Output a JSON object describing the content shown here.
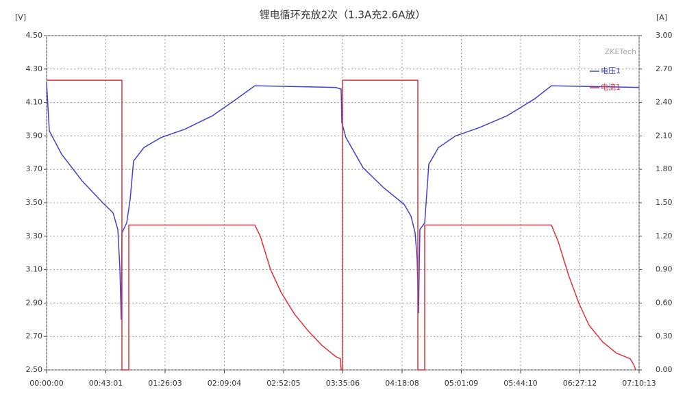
{
  "chart_data": {
    "type": "line",
    "title": "锂电循环充放2次（1.3A充2.6A放）",
    "y_unit": "[V]",
    "y2_unit": "[A]",
    "annotation": "ZKETech",
    "grid": true,
    "legend": "top-right",
    "xlim": [
      0,
      25813
    ],
    "xticks": [
      {
        "value": 0,
        "label": "00:00:00"
      },
      {
        "value": 2581,
        "label": "00:43:01"
      },
      {
        "value": 5163,
        "label": "01:26:03"
      },
      {
        "value": 7744,
        "label": "02:09:04"
      },
      {
        "value": 10325,
        "label": "02:52:05"
      },
      {
        "value": 12906,
        "label": "03:35:06"
      },
      {
        "value": 15488,
        "label": "04:18:08"
      },
      {
        "value": 18069,
        "label": "05:01:09"
      },
      {
        "value": 20650,
        "label": "05:44:10"
      },
      {
        "value": 23232,
        "label": "06:27:12"
      },
      {
        "value": 25813,
        "label": "07:10:13"
      }
    ],
    "ylim": [
      2.5,
      4.5
    ],
    "yticks": [
      {
        "value": 2.5,
        "label": "2.50"
      },
      {
        "value": 2.7,
        "label": "2.70"
      },
      {
        "value": 2.9,
        "label": "2.90"
      },
      {
        "value": 3.1,
        "label": "3.10"
      },
      {
        "value": 3.3,
        "label": "3.30"
      },
      {
        "value": 3.5,
        "label": "3.50"
      },
      {
        "value": 3.7,
        "label": "3.70"
      },
      {
        "value": 3.9,
        "label": "3.90"
      },
      {
        "value": 4.1,
        "label": "4.10"
      },
      {
        "value": 4.3,
        "label": "4.30"
      },
      {
        "value": 4.5,
        "label": "4.50"
      }
    ],
    "y2lim": [
      0,
      3
    ],
    "y2ticks": [
      {
        "value": 0,
        "label": "0.00"
      },
      {
        "value": 0.3,
        "label": "0.30"
      },
      {
        "value": 0.6,
        "label": "0.60"
      },
      {
        "value": 0.9,
        "label": "0.90"
      },
      {
        "value": 1.2,
        "label": "1.20"
      },
      {
        "value": 1.5,
        "label": "1.50"
      },
      {
        "value": 1.8,
        "label": "1.80"
      },
      {
        "value": 2.1,
        "label": "2.10"
      },
      {
        "value": 2.4,
        "label": "2.40"
      },
      {
        "value": 2.7,
        "label": "2.70"
      },
      {
        "value": 3,
        "label": "3.00"
      }
    ],
    "series": [
      {
        "name": "电压1",
        "color": "#4040c8",
        "x": [
          0,
          119,
          657,
          1552,
          2447,
          2895,
          3104,
          3193,
          3253,
          3283,
          3491,
          3641,
          3790,
          4238,
          4984,
          6028,
          7222,
          8266,
          9071,
          12593,
          12832,
          12862,
          13041,
          13787,
          14682,
          15577,
          15876,
          16055,
          16145,
          16204,
          16264,
          16473,
          16652,
          17070,
          17816,
          18860,
          20054,
          21248,
          21994,
          25813
        ],
        "values": [
          4.22,
          3.93,
          3.79,
          3.63,
          3.5,
          3.44,
          3.34,
          3.11,
          2.8,
          3.32,
          3.38,
          3.52,
          3.75,
          3.83,
          3.89,
          3.94,
          4.02,
          4.12,
          4.2,
          4.19,
          4.18,
          3.98,
          3.89,
          3.71,
          3.59,
          3.49,
          3.42,
          3.32,
          3.16,
          2.84,
          3.34,
          3.38,
          3.73,
          3.83,
          3.9,
          3.95,
          4.02,
          4.12,
          4.2,
          4.19
        ]
      },
      {
        "name": "电流1",
        "color": "#e0303a",
        "axis": "y2",
        "x": [
          0,
          3283,
          3283,
          3581,
          3581,
          9071,
          9311,
          9758,
          10206,
          10803,
          11400,
          11996,
          12593,
          12802,
          12832,
          12892,
          12892,
          16174,
          16174,
          16473,
          16473,
          21994,
          22293,
          22740,
          23188,
          23635,
          24232,
          24829,
          25426,
          25575,
          25664
        ],
        "values": [
          2.6,
          2.6,
          0,
          0,
          1.3,
          1.3,
          1.2,
          0.9,
          0.7,
          0.5,
          0.35,
          0.22,
          0.12,
          0.1,
          0,
          0,
          2.6,
          2.6,
          0,
          0,
          1.3,
          1.3,
          1.15,
          0.85,
          0.6,
          0.4,
          0.25,
          0.15,
          0.1,
          0.05,
          0
        ]
      }
    ]
  }
}
